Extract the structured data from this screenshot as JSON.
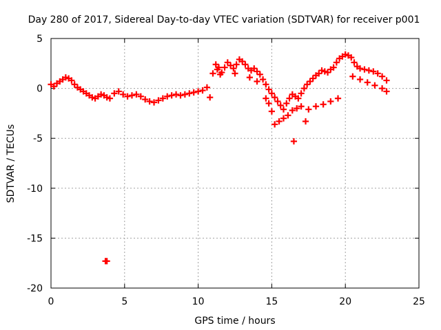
{
  "chart_data": {
    "type": "scatter",
    "title": "Day 280 of 2017, Sidereal Day-to-day VTEC variation (SDTVAR) for receiver p001",
    "xlabel": "GPS time / hours",
    "ylabel": "SDTVAR / TECUs",
    "xlim": [
      0,
      25
    ],
    "ylim": [
      -20,
      5
    ],
    "xticks": [
      0,
      5,
      10,
      15,
      20,
      25
    ],
    "yticks": [
      5,
      0,
      -5,
      -10,
      -15,
      -20
    ],
    "xtick_labels": [
      "0",
      "5",
      "10",
      "15",
      "20",
      "25"
    ],
    "ytick_labels": [
      "5",
      "0",
      "-5",
      "-10",
      "-15",
      "-20"
    ],
    "grid": true,
    "marker": "plus",
    "color": "#ff0000",
    "series": [
      {
        "name": "SDTVAR",
        "x": [
          0.0,
          0.2,
          0.4,
          0.6,
          0.8,
          1.0,
          1.2,
          1.4,
          1.6,
          1.8,
          2.0,
          2.2,
          2.4,
          2.6,
          2.8,
          3.0,
          3.2,
          3.4,
          3.6,
          3.8,
          4.0,
          4.3,
          4.6,
          4.9,
          5.2,
          5.5,
          5.8,
          6.1,
          6.4,
          6.7,
          7.0,
          7.3,
          7.6,
          7.9,
          8.2,
          8.5,
          8.8,
          9.1,
          9.4,
          9.7,
          10.0,
          10.3,
          10.6,
          11.0,
          11.2,
          11.4,
          11.6,
          11.8,
          12.0,
          12.2,
          12.4,
          12.6,
          12.8,
          13.0,
          13.2,
          13.4,
          13.6,
          13.8,
          14.0,
          14.2,
          14.4,
          14.6,
          14.8,
          15.0,
          15.2,
          15.4,
          15.6,
          15.8,
          16.0,
          16.2,
          16.4,
          16.6,
          16.8,
          17.0,
          17.2,
          17.4,
          17.6,
          17.8,
          18.0,
          18.2,
          18.4,
          18.6,
          18.8,
          19.0,
          19.2,
          19.4,
          19.6,
          19.8,
          20.0,
          20.2,
          20.4,
          20.6,
          20.8,
          21.0,
          21.3,
          21.6,
          21.9,
          22.2,
          22.5,
          22.8,
          3.7,
          3.8,
          15.2,
          15.5,
          15.8,
          16.1,
          16.4,
          16.7,
          17.0,
          17.3,
          16.5,
          14.6,
          14.8,
          15.0,
          19.5,
          19.0,
          18.5,
          18.0,
          17.5,
          20.5,
          21.0,
          21.5,
          22.0,
          22.5,
          22.8,
          11.3,
          11.5,
          12.5,
          13.5,
          14.0,
          10.8
        ],
        "y": [
          0.4,
          0.2,
          0.5,
          0.7,
          0.9,
          1.1,
          1.0,
          0.8,
          0.4,
          0.1,
          -0.1,
          -0.3,
          -0.5,
          -0.7,
          -0.9,
          -1.0,
          -0.8,
          -0.6,
          -0.7,
          -0.9,
          -1.0,
          -0.5,
          -0.3,
          -0.6,
          -0.8,
          -0.7,
          -0.6,
          -0.8,
          -1.1,
          -1.3,
          -1.4,
          -1.2,
          -1.0,
          -0.8,
          -0.7,
          -0.6,
          -0.7,
          -0.6,
          -0.5,
          -0.4,
          -0.3,
          -0.2,
          0.1,
          1.5,
          2.4,
          2.1,
          1.6,
          2.1,
          2.6,
          2.3,
          2.0,
          2.4,
          2.9,
          2.7,
          2.4,
          2.0,
          1.8,
          2.0,
          1.7,
          1.4,
          0.9,
          0.4,
          -0.1,
          -0.5,
          -0.9,
          -1.3,
          -1.7,
          -2.1,
          -1.5,
          -1.0,
          -0.6,
          -0.8,
          -1.0,
          -0.5,
          0.0,
          0.4,
          0.7,
          1.0,
          1.3,
          1.5,
          1.8,
          1.7,
          1.6,
          1.9,
          2.1,
          2.6,
          3.0,
          3.2,
          3.4,
          3.3,
          3.1,
          2.6,
          2.2,
          2.0,
          1.9,
          1.8,
          1.7,
          1.5,
          1.2,
          0.8,
          -17.3,
          -17.3,
          -3.6,
          -3.3,
          -3.0,
          -2.7,
          -2.2,
          -2.0,
          -1.8,
          -3.3,
          -5.3,
          -1.0,
          -1.5,
          -2.3,
          -1.0,
          -1.3,
          -1.6,
          -1.8,
          -2.1,
          1.2,
          0.9,
          0.6,
          0.3,
          0.0,
          -0.3,
          1.9,
          1.4,
          1.5,
          1.1,
          0.7,
          -0.9
        ]
      }
    ]
  }
}
